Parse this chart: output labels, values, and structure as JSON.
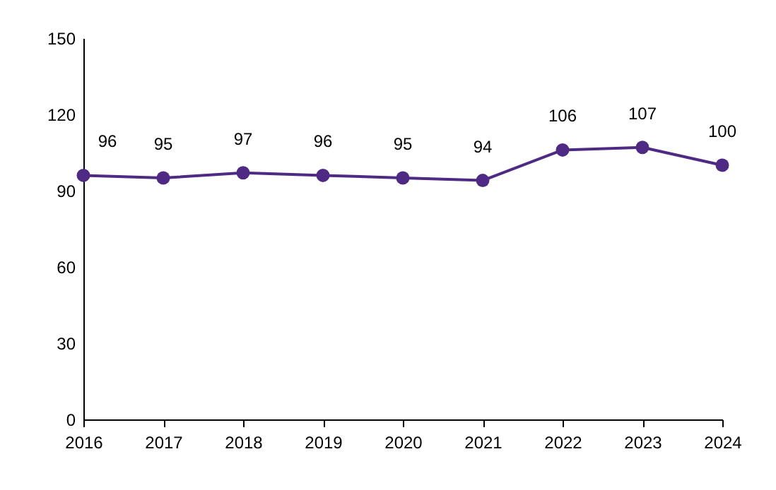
{
  "chart_data": {
    "type": "line",
    "x": [
      2016,
      2017,
      2018,
      2019,
      2020,
      2021,
      2022,
      2023,
      2024
    ],
    "series": [
      {
        "color": "#4e2a84",
        "values": [
          96,
          95,
          97,
          96,
          95,
          94,
          106,
          107,
          100
        ]
      }
    ],
    "xlim": [
      2016,
      2024
    ],
    "xticks": [
      2016,
      2017,
      2018,
      2019,
      2020,
      2021,
      2022,
      2023,
      2024
    ],
    "ylim": [
      0,
      150
    ],
    "yticks": [
      0,
      30,
      60,
      90,
      120,
      150
    ],
    "grid": false,
    "marker": "circle",
    "data_labels": true
  }
}
